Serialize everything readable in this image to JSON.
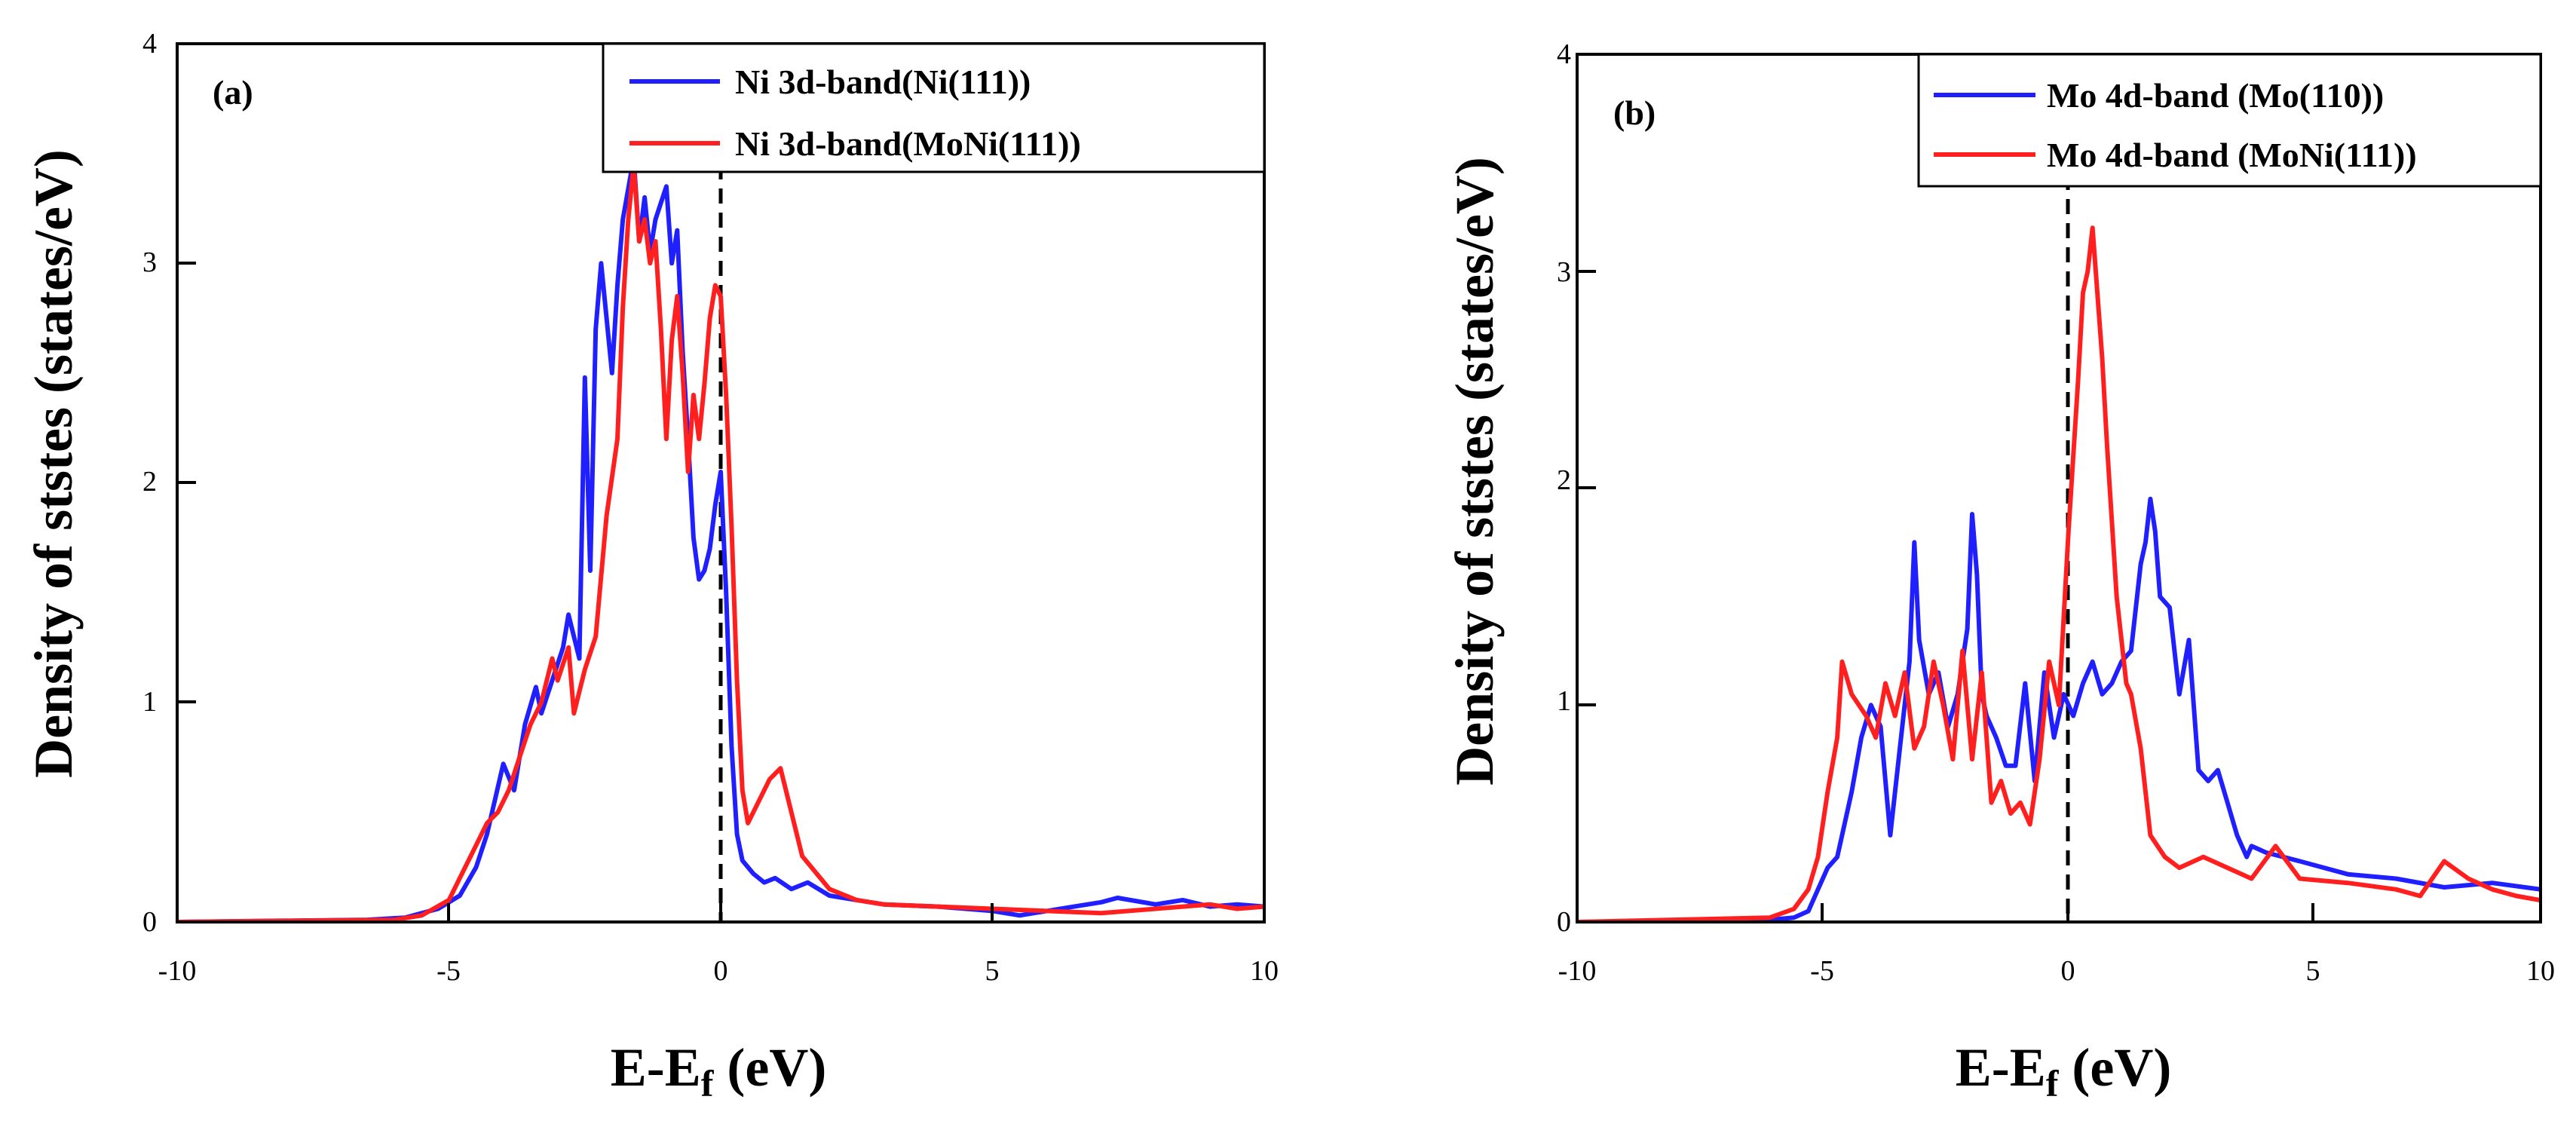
{
  "chart_data": [
    {
      "type": "line",
      "panel_label": "(a)",
      "xlabel": "E-E",
      "xlabel_sub": "f",
      "xlabel_unit": " (eV)",
      "ylabel": "Density of ststes (states/eV)",
      "xlim": [
        -10,
        10
      ],
      "ylim": [
        0,
        4
      ],
      "xticks": [
        -10,
        -5,
        0,
        5,
        10
      ],
      "yticks": [
        0,
        1,
        2,
        3,
        4
      ],
      "fermi_line_x": 0,
      "legend_position": "top-right",
      "series": [
        {
          "name": "Ni 3d-band(Ni(111))",
          "color": "#1f1fff",
          "x": [
            -10,
            -6.5,
            -5.8,
            -5.5,
            -5.2,
            -4.8,
            -4.5,
            -4.3,
            -4.0,
            -3.8,
            -3.6,
            -3.4,
            -3.3,
            -3.1,
            -2.9,
            -2.8,
            -2.6,
            -2.5,
            -2.4,
            -2.3,
            -2.2,
            -2.0,
            -1.9,
            -1.8,
            -1.6,
            -1.5,
            -1.4,
            -1.3,
            -1.2,
            -1.0,
            -0.9,
            -0.8,
            -0.7,
            -0.6,
            -0.5,
            -0.4,
            -0.3,
            -0.2,
            -0.1,
            0.0,
            0.1,
            0.2,
            0.3,
            0.4,
            0.6,
            0.8,
            1.0,
            1.3,
            1.6,
            2.0,
            2.5,
            3.0,
            4.0,
            5.0,
            5.5,
            6.0,
            6.5,
            7.0,
            7.3,
            8.0,
            8.5,
            9.0,
            9.5,
            10.0
          ],
          "y": [
            0,
            0.01,
            0.02,
            0.04,
            0.06,
            0.12,
            0.25,
            0.4,
            0.72,
            0.6,
            0.9,
            1.07,
            0.95,
            1.1,
            1.25,
            1.4,
            1.2,
            2.48,
            1.6,
            2.7,
            3.0,
            2.5,
            2.9,
            3.2,
            3.48,
            3.1,
            3.3,
            3.05,
            3.2,
            3.35,
            3.0,
            3.15,
            2.6,
            2.2,
            1.75,
            1.56,
            1.6,
            1.7,
            1.9,
            2.05,
            1.5,
            0.8,
            0.4,
            0.28,
            0.22,
            0.18,
            0.2,
            0.15,
            0.18,
            0.12,
            0.1,
            0.08,
            0.07,
            0.05,
            0.03,
            0.05,
            0.07,
            0.09,
            0.11,
            0.08,
            0.1,
            0.07,
            0.08,
            0.07
          ]
        },
        {
          "name": "Ni 3d-band(MoNi(111))",
          "color": "#ff1f1f",
          "x": [
            -10,
            -6.0,
            -5.5,
            -5.0,
            -4.8,
            -4.5,
            -4.3,
            -4.1,
            -3.9,
            -3.7,
            -3.5,
            -3.3,
            -3.1,
            -3.0,
            -2.8,
            -2.7,
            -2.5,
            -2.3,
            -2.1,
            -1.9,
            -1.8,
            -1.7,
            -1.6,
            -1.5,
            -1.4,
            -1.3,
            -1.2,
            -1.1,
            -1.0,
            -0.9,
            -0.8,
            -0.7,
            -0.6,
            -0.5,
            -0.4,
            -0.3,
            -0.2,
            -0.1,
            0.0,
            0.1,
            0.2,
            0.3,
            0.4,
            0.5,
            0.7,
            0.9,
            1.1,
            1.3,
            1.5,
            2.0,
            2.5,
            3.0,
            4.0,
            5.0,
            6.0,
            7.0,
            8.0,
            9.0,
            9.5,
            10.0
          ],
          "y": [
            0,
            0.01,
            0.03,
            0.1,
            0.2,
            0.35,
            0.45,
            0.5,
            0.6,
            0.75,
            0.9,
            1.0,
            1.2,
            1.1,
            1.25,
            0.95,
            1.15,
            1.3,
            1.85,
            2.2,
            2.8,
            3.2,
            3.45,
            3.1,
            3.2,
            3.0,
            3.1,
            2.7,
            2.2,
            2.65,
            2.85,
            2.5,
            2.05,
            2.4,
            2.2,
            2.45,
            2.75,
            2.9,
            2.85,
            2.4,
            1.8,
            1.1,
            0.6,
            0.45,
            0.55,
            0.65,
            0.7,
            0.5,
            0.3,
            0.15,
            0.1,
            0.08,
            0.07,
            0.06,
            0.05,
            0.04,
            0.06,
            0.08,
            0.06,
            0.07
          ]
        }
      ]
    },
    {
      "type": "line",
      "panel_label": "(b)",
      "xlabel": "E-E",
      "xlabel_sub": "f",
      "xlabel_unit": " (eV)",
      "ylabel": "Density of ststes (states/eV)",
      "xlim": [
        -10,
        10
      ],
      "ylim": [
        0,
        4
      ],
      "xticks": [
        -10,
        -5,
        0,
        5,
        10
      ],
      "yticks": [
        0,
        1,
        2,
        3,
        4
      ],
      "fermi_line_x": 0,
      "legend_position": "top-right",
      "series": [
        {
          "name": "Mo 4d-band (Mo(110))",
          "color": "#1f1fff",
          "x": [
            -10,
            -6.0,
            -5.5,
            -5.2,
            -5.0,
            -4.8,
            -4.6,
            -4.3,
            -4.1,
            -3.9,
            -3.7,
            -3.5,
            -3.3,
            -3.1,
            -3.0,
            -2.9,
            -2.7,
            -2.5,
            -2.3,
            -2.1,
            -1.9,
            -1.8,
            -1.7,
            -1.6,
            -1.5,
            -1.3,
            -1.1,
            -0.9,
            -0.7,
            -0.5,
            -0.3,
            -0.1,
            0.1,
            0.3,
            0.5,
            0.7,
            0.9,
            1.1,
            1.3,
            1.5,
            1.7,
            1.8,
            1.9,
            2.0,
            2.1,
            2.3,
            2.5,
            2.7,
            2.9,
            3.1,
            3.3,
            3.5,
            3.7,
            3.9,
            4.0,
            4.3,
            5.0,
            6.0,
            7.0,
            8.0,
            9.0,
            10.0
          ],
          "y": [
            0,
            0.01,
            0.02,
            0.05,
            0.15,
            0.25,
            0.3,
            0.6,
            0.85,
            1.0,
            0.9,
            0.4,
            0.8,
            1.2,
            1.75,
            1.3,
            1.05,
            1.15,
            0.9,
            1.05,
            1.35,
            1.88,
            1.6,
            1.05,
            0.95,
            0.85,
            0.72,
            0.72,
            1.1,
            0.65,
            1.15,
            0.85,
            1.05,
            0.95,
            1.1,
            1.2,
            1.05,
            1.1,
            1.2,
            1.25,
            1.65,
            1.75,
            1.95,
            1.8,
            1.5,
            1.45,
            1.05,
            1.3,
            0.7,
            0.65,
            0.7,
            0.55,
            0.4,
            0.3,
            0.35,
            0.32,
            0.28,
            0.22,
            0.2,
            0.16,
            0.18,
            0.15
          ]
        },
        {
          "name": "Mo 4d-band (MoNi(111))",
          "color": "#ff1f1f",
          "x": [
            -10,
            -6.0,
            -5.5,
            -5.2,
            -5.0,
            -4.8,
            -4.6,
            -4.5,
            -4.3,
            -4.0,
            -3.8,
            -3.6,
            -3.4,
            -3.2,
            -3.0,
            -2.8,
            -2.6,
            -2.4,
            -2.2,
            -2.0,
            -1.8,
            -1.6,
            -1.4,
            -1.2,
            -1.0,
            -0.8,
            -0.6,
            -0.4,
            -0.2,
            0.0,
            0.2,
            0.4,
            0.5,
            0.6,
            0.7,
            0.8,
            0.9,
            1.0,
            1.2,
            1.4,
            1.5,
            1.7,
            1.9,
            2.2,
            2.5,
            3.0,
            3.5,
            4.0,
            4.5,
            5.0,
            6.0,
            7.0,
            7.5,
            8.0,
            8.5,
            9.0,
            9.5,
            10.0
          ],
          "y": [
            0,
            0.02,
            0.06,
            0.15,
            0.3,
            0.6,
            0.85,
            1.2,
            1.05,
            0.95,
            0.85,
            1.1,
            0.95,
            1.15,
            0.8,
            0.9,
            1.2,
            1.0,
            0.75,
            1.25,
            0.75,
            1.15,
            0.55,
            0.65,
            0.5,
            0.55,
            0.45,
            0.75,
            1.2,
            1.0,
            1.8,
            2.5,
            2.9,
            3.0,
            3.2,
            2.9,
            2.6,
            2.2,
            1.5,
            1.1,
            1.05,
            0.8,
            0.4,
            0.3,
            0.25,
            0.3,
            0.25,
            0.2,
            0.35,
            0.2,
            0.18,
            0.15,
            0.12,
            0.28,
            0.2,
            0.15,
            0.12,
            0.1
          ]
        }
      ]
    }
  ]
}
